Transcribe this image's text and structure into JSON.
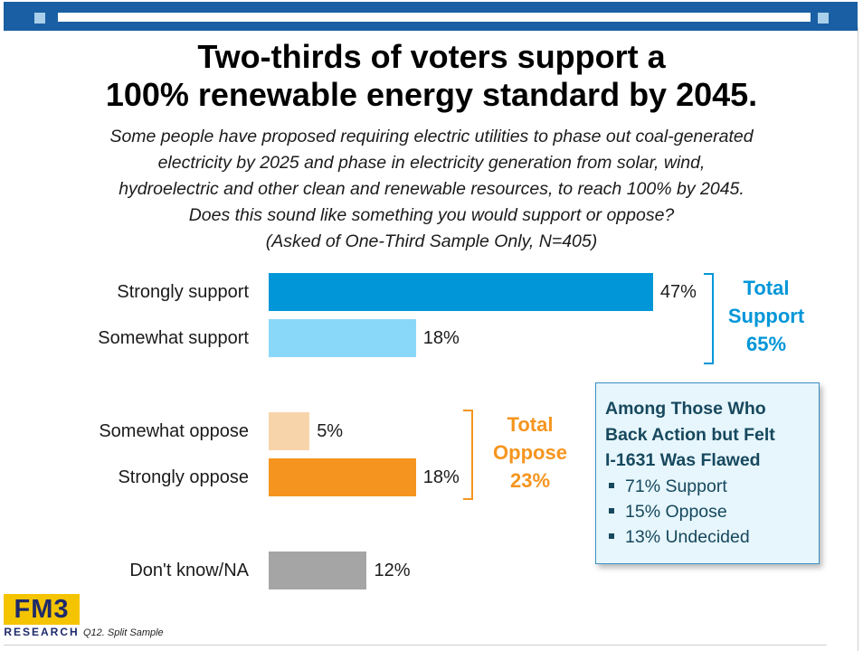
{
  "title_line1": "Two-thirds of voters support a",
  "title_line2": "100% renewable energy standard by 2045.",
  "subtitle_lines": [
    "Some people have proposed requiring electric utilities to phase out coal-generated",
    "electricity by 2025 and phase in electricity generation from solar, wind,",
    "hydroelectric and other clean and renewable resources, to reach 100% by 2045.",
    "Does this sound like something you would support or oppose?",
    "(Asked of One-Third Sample Only, N=405)"
  ],
  "chart_data": {
    "type": "bar",
    "orientation": "horizontal",
    "categories": [
      "Strongly support",
      "Somewhat support",
      "Somewhat oppose",
      "Strongly oppose",
      "Don't know/NA"
    ],
    "values": [
      47,
      18,
      5,
      18,
      12
    ],
    "value_labels": [
      "47%",
      "18%",
      "5%",
      "18%",
      "12%"
    ],
    "colors": [
      "#0096d8",
      "#8ad8f9",
      "#f8d4ab",
      "#f5951f",
      "#a5a5a5"
    ],
    "xlim": [
      0,
      100
    ],
    "grid": false
  },
  "totals": {
    "support": {
      "line1": "Total",
      "line2": "Support",
      "line3": "65%",
      "color": "#0096d8"
    },
    "oppose": {
      "line1": "Total",
      "line2": "Oppose",
      "line3": "23%",
      "color": "#f5951f"
    }
  },
  "callout": {
    "title_lines": [
      "Among Those Who",
      "Back Action but Felt",
      "I-1631 Was Flawed"
    ],
    "items": [
      "71% Support",
      "15% Oppose",
      "13% Undecided"
    ]
  },
  "logo": {
    "top": "FM3",
    "bottom": "RESEARCH"
  },
  "footnote": "Q12. Split Sample",
  "colors": {
    "header_band": "#1a5fa3",
    "callout_text": "#17485e",
    "callout_bg": "#e6f6fc"
  }
}
